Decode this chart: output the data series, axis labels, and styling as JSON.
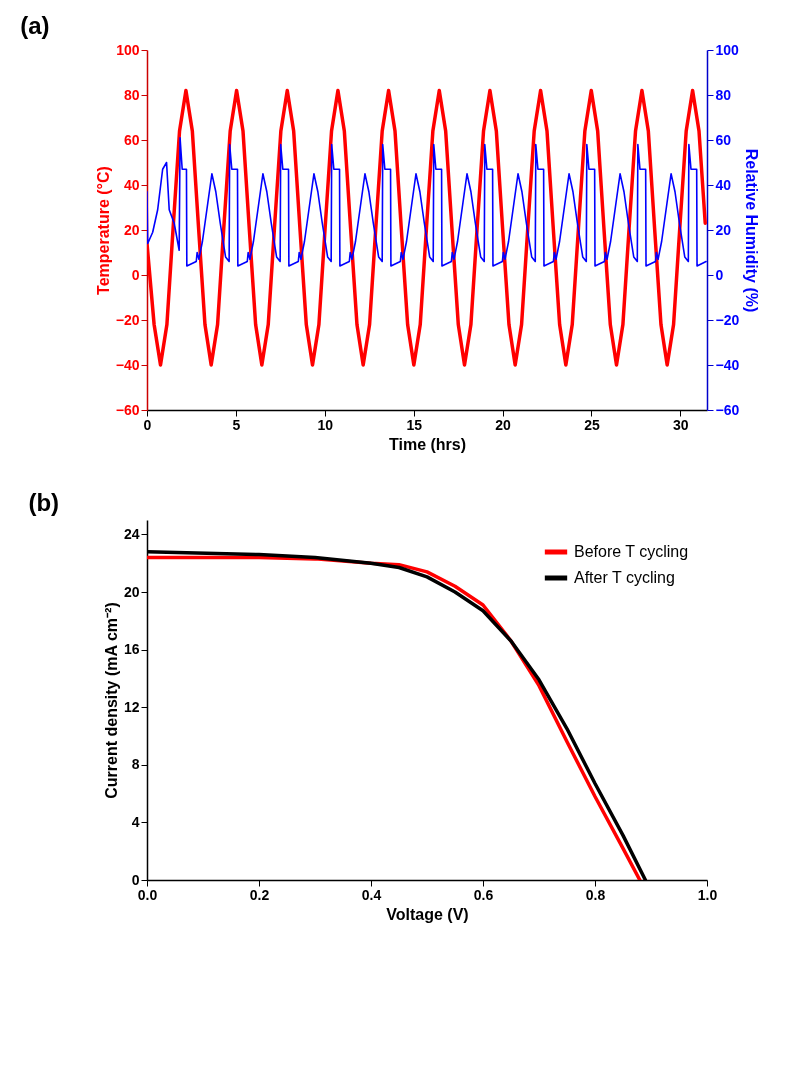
{
  "chart_data": [
    {
      "type": "line",
      "title": "(a)",
      "xlabel": "Time (hrs)",
      "ylabel": "Temperature (°C)",
      "y2label": "Relative Humidity (%)",
      "legend": false,
      "xlim": [
        0,
        31.5
      ],
      "xticks": [
        0,
        5,
        10,
        15,
        20,
        25,
        30
      ],
      "ylim": [
        -60,
        100
      ],
      "yticks": [
        -60,
        -40,
        -20,
        0,
        20,
        40,
        60,
        80,
        100
      ],
      "y2lim": [
        -60,
        100
      ],
      "y2ticks": [
        -60,
        -40,
        -20,
        0,
        20,
        40,
        60,
        80,
        100
      ],
      "series": [
        {
          "color": "#ff0000",
          "x": [
            0,
            0.4,
            0.76,
            1.12,
            1.47,
            1.83,
            2.19,
            2.55,
            2.9,
            3.26,
            3.61,
            3.97,
            4.32,
            4.68,
            5.04,
            5.4,
            5.75,
            6.11,
            6.46,
            6.82,
            7.17,
            7.53,
            7.89,
            8.25,
            8.6,
            8.96,
            9.31,
            9.67,
            10.02,
            10.38,
            10.74,
            11.1,
            11.45,
            11.81,
            12.16,
            12.52,
            12.87,
            13.23,
            13.59,
            13.95,
            14.3,
            14.66,
            15.01,
            15.37,
            15.72,
            16.08,
            16.44,
            16.8,
            17.15,
            17.51,
            17.86,
            18.22,
            18.57,
            18.93,
            19.29,
            19.65,
            20,
            20.36,
            20.71,
            21.07,
            21.42,
            21.78,
            22.14,
            22.5,
            22.85,
            23.21,
            23.56,
            23.92,
            24.27,
            24.63,
            24.99,
            25.35,
            25.7,
            26.06,
            26.41,
            26.77,
            27.12,
            27.48,
            27.84,
            28.2,
            28.55,
            28.91,
            29.26,
            29.62,
            29.97,
            30.33,
            30.69,
            31.05,
            31.4
          ],
          "values": [
            14,
            -22,
            -40,
            -22,
            21,
            64,
            82,
            64,
            21,
            -22,
            -40,
            -22,
            21,
            64,
            82,
            64,
            21,
            -22,
            -40,
            -22,
            21,
            64,
            82,
            64,
            21,
            -22,
            -40,
            -22,
            21,
            64,
            82,
            64,
            21,
            -22,
            -40,
            -22,
            21,
            64,
            82,
            64,
            21,
            -22,
            -40,
            -22,
            21,
            64,
            82,
            64,
            21,
            -22,
            -40,
            -22,
            21,
            64,
            82,
            64,
            21,
            -22,
            -40,
            -22,
            21,
            64,
            82,
            64,
            21,
            -22,
            -40,
            -22,
            21,
            64,
            82,
            64,
            21,
            -22,
            -40,
            -22,
            21,
            64,
            82,
            64,
            21,
            -22,
            -40,
            -22,
            21,
            64,
            82,
            64,
            23
          ]
        },
        {
          "color": "#0000ff",
          "axis": "y2",
          "x": [
            0,
            0.04,
            0.32,
            0.6,
            0.88,
            1.1,
            1.25,
            1.53,
            1.81,
            1.86,
            1.98,
            2.22,
            2.24,
            2.77,
            2.82,
            2.92,
            3.12,
            3.42,
            3.65,
            3.87,
            4.12,
            4.42,
            4.62,
            4.65,
            4.77,
            5.09,
            5.11,
            5.64,
            5.69,
            5.79,
            5.99,
            6.29,
            6.52,
            6.74,
            6.99,
            7.29,
            7.49,
            7.52,
            7.64,
            7.96,
            7.98,
            8.51,
            8.56,
            8.66,
            8.86,
            9.16,
            9.39,
            9.61,
            9.86,
            10.16,
            10.36,
            10.39,
            10.51,
            10.83,
            10.85,
            11.38,
            11.43,
            11.53,
            11.73,
            12.03,
            12.26,
            12.48,
            12.73,
            13.03,
            13.23,
            13.26,
            13.38,
            13.7,
            13.72,
            14.25,
            14.3,
            14.4,
            14.6,
            14.9,
            15.13,
            15.35,
            15.6,
            15.9,
            16.1,
            16.13,
            16.25,
            16.57,
            16.59,
            17.12,
            17.17,
            17.27,
            17.47,
            17.77,
            18,
            18.22,
            18.47,
            18.77,
            18.97,
            19,
            19.12,
            19.44,
            19.46,
            19.99,
            20.04,
            20.14,
            20.34,
            20.64,
            20.87,
            21.09,
            21.34,
            21.64,
            21.84,
            21.87,
            21.99,
            22.31,
            22.33,
            22.86,
            22.91,
            23.01,
            23.21,
            23.51,
            23.74,
            23.96,
            24.21,
            24.51,
            24.71,
            24.74,
            24.86,
            25.18,
            25.2,
            25.73,
            25.78,
            25.88,
            26.08,
            26.38,
            26.61,
            26.83,
            27.08,
            27.38,
            27.58,
            27.61,
            27.73,
            28.05,
            28.07,
            28.6,
            28.65,
            28.75,
            28.95,
            29.25,
            29.48,
            29.7,
            29.95,
            30.25,
            30.45,
            30.48,
            30.6,
            30.92,
            30.94,
            31.45
          ],
          "values": [
            37,
            14,
            19,
            29,
            47,
            50,
            29,
            23,
            11,
            61,
            47,
            47,
            4,
            6,
            10,
            7,
            15,
            32,
            45,
            37,
            23,
            8,
            6,
            58,
            47,
            47,
            4,
            6,
            10,
            7,
            15,
            32,
            45,
            37,
            23,
            8,
            6,
            58,
            47,
            47,
            4,
            6,
            10,
            7,
            15,
            32,
            45,
            37,
            23,
            8,
            6,
            58,
            47,
            47,
            4,
            6,
            10,
            7,
            15,
            32,
            45,
            37,
            23,
            8,
            6,
            58,
            47,
            47,
            4,
            6,
            10,
            7,
            15,
            32,
            45,
            37,
            23,
            8,
            6,
            58,
            47,
            47,
            4,
            6,
            10,
            7,
            15,
            32,
            45,
            37,
            23,
            8,
            6,
            58,
            47,
            47,
            4,
            6,
            10,
            7,
            15,
            32,
            45,
            37,
            23,
            8,
            6,
            58,
            47,
            47,
            4,
            6,
            10,
            7,
            15,
            32,
            45,
            37,
            23,
            8,
            6,
            58,
            47,
            47,
            4,
            6,
            10,
            7,
            15,
            32,
            45,
            37,
            23,
            8,
            6,
            58,
            47,
            47,
            4,
            6,
            10,
            7,
            15,
            32,
            45,
            37,
            23,
            8,
            6,
            58,
            47,
            47,
            4,
            6
          ]
        }
      ]
    },
    {
      "type": "line",
      "title": "(b)",
      "xlabel": "Voltage (V)",
      "ylabel": "Current density (mA cm⁻²)",
      "legend": "top right",
      "xlim": [
        0,
        1
      ],
      "xticks": [
        {
          "value": 0,
          "label": "0.0"
        },
        0.2,
        0.4,
        0.6,
        0.8,
        {
          "value": 1,
          "label": "1.0"
        }
      ],
      "ylim": [
        0,
        25
      ],
      "yticks": [
        0,
        4,
        8,
        12,
        16,
        20,
        24
      ],
      "series": [
        {
          "name": "Before T cycling",
          "color": "#ff0000",
          "x": [
            0,
            0.2,
            0.3,
            0.4,
            0.45,
            0.5,
            0.55,
            0.6,
            0.65,
            0.7,
            0.75,
            0.8,
            0.85,
            0.88
          ],
          "values": [
            22.4,
            22.4,
            22.3,
            22.0,
            21.9,
            21.4,
            20.4,
            19.1,
            16.6,
            13.5,
            9.6,
            5.8,
            2.2,
            0
          ]
        },
        {
          "name": "After T cycling",
          "color": "#000000",
          "x": [
            0,
            0.2,
            0.3,
            0.4,
            0.45,
            0.5,
            0.55,
            0.6,
            0.65,
            0.7,
            0.75,
            0.8,
            0.85,
            0.89
          ],
          "values": [
            22.8,
            22.6,
            22.4,
            22.0,
            21.7,
            21.05,
            20.0,
            18.7,
            16.6,
            13.9,
            10.5,
            6.7,
            3.1,
            0
          ]
        }
      ]
    }
  ]
}
